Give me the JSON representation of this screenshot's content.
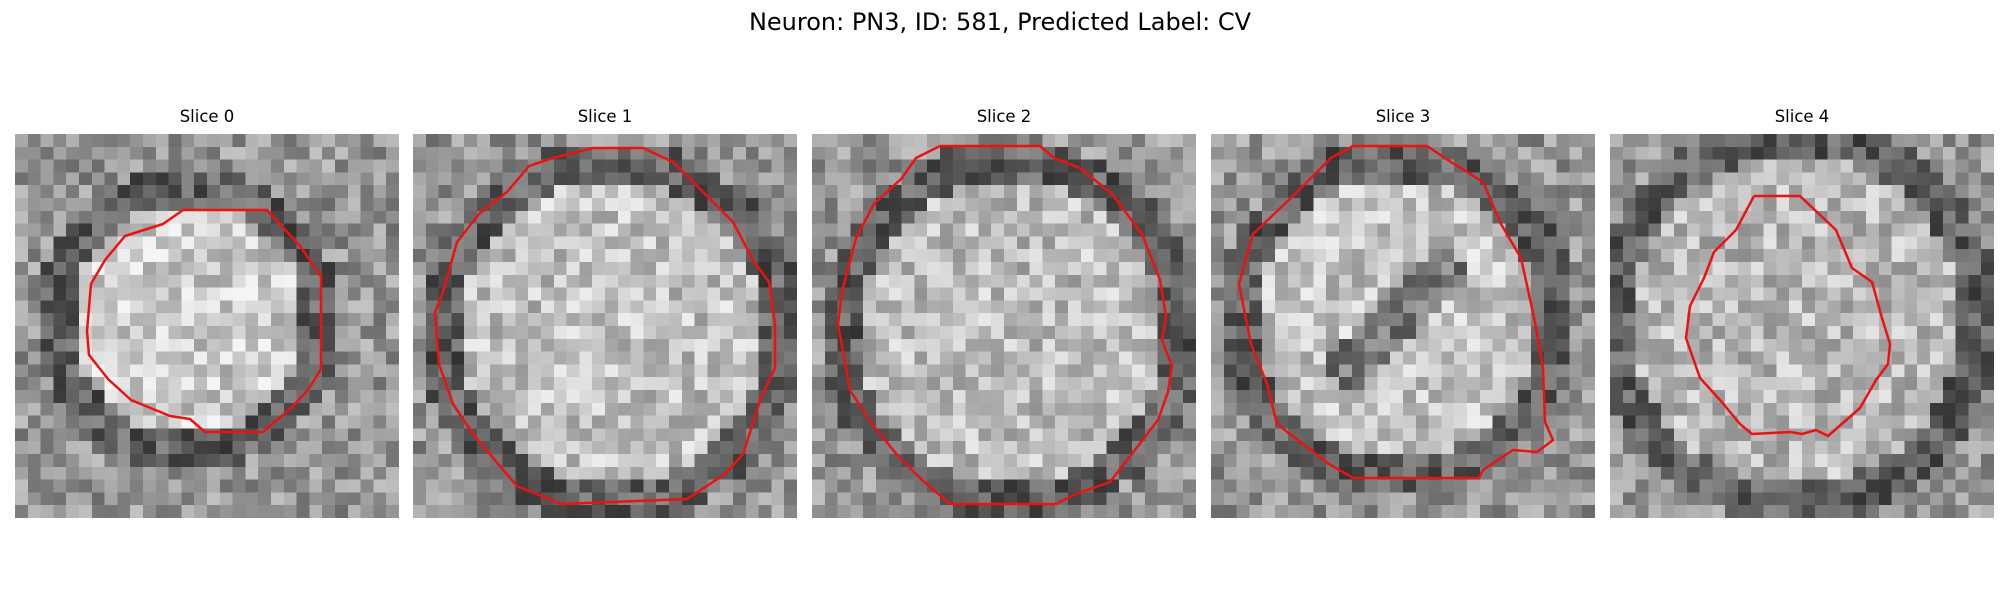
{
  "figure": {
    "title": "Neuron: PN3, ID: 581, Predicted Label: CV",
    "contour_color": "#ee1111",
    "colormap": "gray"
  },
  "panels": [
    {
      "title": "Slice 0"
    },
    {
      "title": "Slice 1"
    },
    {
      "title": "Slice 2"
    },
    {
      "title": "Slice 3"
    },
    {
      "title": "Slice 4"
    }
  ]
}
